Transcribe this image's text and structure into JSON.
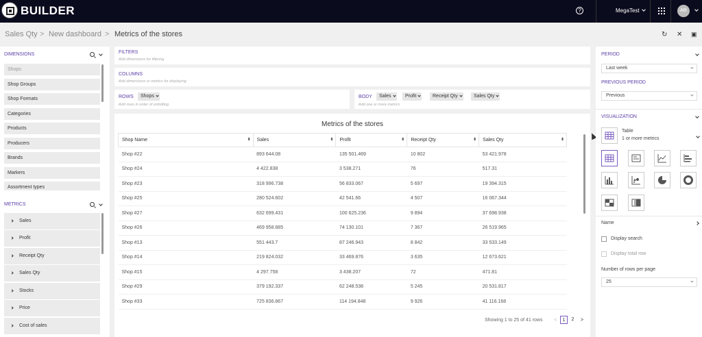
{
  "app": {
    "title": "BUILDER"
  },
  "topbar": {
    "user": "MegaTest",
    "avatar": "AR"
  },
  "breadcrumb": {
    "items": [
      "Sales Qty",
      "New dashboard",
      "Metrics of the stores"
    ],
    "separator": ">"
  },
  "dimensions": {
    "title": "DIMENSIONS",
    "items": [
      "Shops",
      "Shop Groups",
      "Shop Formats",
      "Categories",
      "Products",
      "Producers",
      "Brands",
      "Markers",
      "Assortment types"
    ]
  },
  "metrics": {
    "title": "METRICS",
    "items": [
      "Sales",
      "Profit",
      "Receipt Qty",
      "Sales Qty",
      "Stocks",
      "Price",
      "Cost of sales"
    ]
  },
  "filters": {
    "title": "FILTERS",
    "hint": "Add dimensions for filtering"
  },
  "columns": {
    "title": "COLUMNS",
    "hint": "Add dimensions or metrics for displaying"
  },
  "rows": {
    "title": "ROWS",
    "hint": "Add rows in order of unfolding",
    "chips": [
      "Shops"
    ]
  },
  "body": {
    "title": "BODY",
    "hint": "Add one or more metrics",
    "chips": [
      "Sales",
      "Profit",
      "Receipt Qty",
      "Sales Qty"
    ]
  },
  "table": {
    "title": "Metrics of the stores",
    "columns": [
      "Shop Name",
      "Sales",
      "Profit",
      "Receipt Qty",
      "Sales Qty"
    ],
    "rows": [
      [
        "Shop #22",
        "893 644.08",
        "135 501.469",
        "10 802",
        "53 421.978"
      ],
      [
        "Shop #24",
        "4 422.838",
        "3 538.271",
        "76",
        "517.31"
      ],
      [
        "Shop #23",
        "318 996.738",
        "56 833.067",
        "5 697",
        "19 394.315"
      ],
      [
        "Shop #25",
        "280 524.602",
        "42 541.66",
        "4 507",
        "16 067.344"
      ],
      [
        "Shop #27",
        "632 699.431",
        "100 625.236",
        "9 894",
        "37 698.938"
      ],
      [
        "Shop #26",
        "469 958.885",
        "74 130.101",
        "7 367",
        "26 519.965"
      ],
      [
        "Shop #13",
        "551 443.7",
        "87 246.943",
        "8 842",
        "33 533.149"
      ],
      [
        "Shop #14",
        "219 824.032",
        "33 469.876",
        "3 635",
        "12 673.621"
      ],
      [
        "Shop #15",
        "4 297.758",
        "3 438.207",
        "72",
        "471.81"
      ],
      [
        "Shop #29",
        "379 192.337",
        "62 248.538",
        "5 245",
        "20 531.817"
      ],
      [
        "Shop #33",
        "725 836.867",
        "114 194.848",
        "9 926",
        "41 116.168"
      ]
    ],
    "pagination": {
      "summary": "Showing 1 to 25 of 41 rows",
      "prev": "<",
      "pages": [
        "1",
        "2"
      ],
      "next": ">"
    }
  },
  "right": {
    "period_label": "PERIOD",
    "period_value": "Last week",
    "previous_period_label": "PREVIOUS PERIOD",
    "previous_period_value": "Previous",
    "visualization_label": "VISUALIZATION",
    "viz_type": "Table",
    "viz_desc": "1 or more metrics",
    "viz_icons": [
      "table-icon",
      "card-icon",
      "line-chart-icon",
      "bar-chart-icon",
      "column-chart-icon",
      "scatter-icon",
      "pie-chart-icon",
      "donut-chart-icon",
      "treemap-icon",
      "heatmap-icon"
    ],
    "name_label": "Name",
    "display_search": "Display search",
    "display_total_row": "Display total row",
    "rows_per_page_label": "Number of rows per page",
    "rows_per_page_value": "25"
  },
  "colors": {
    "accent": "#5b3ea6",
    "topbar": "#0b0b1e"
  }
}
